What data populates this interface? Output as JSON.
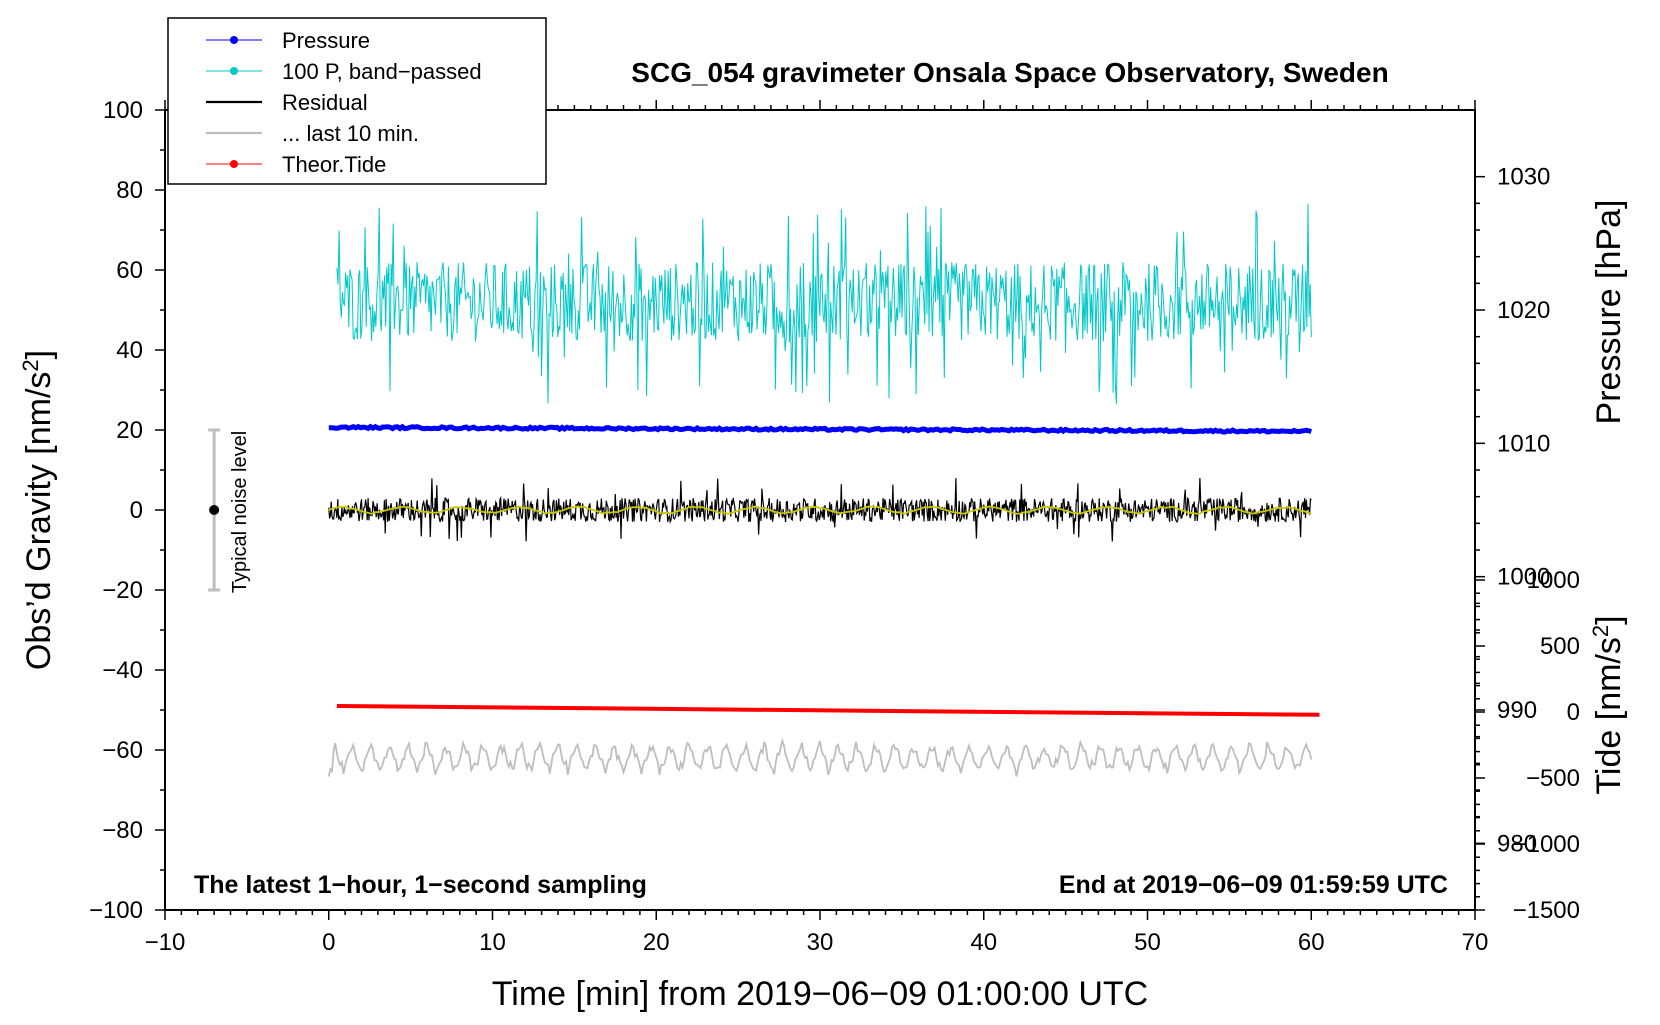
{
  "chart_data": {
    "type": "line",
    "title": "SCG_054 gravimeter Onsala Space Observatory, Sweden",
    "xlabel": "Time [min] from 2019−06−09 01:00:00 UTC",
    "ylabel_left": "Obs’d Gravity [nm/s",
    "ylabel_left_sup": "2",
    "ylabel_left_end": "]",
    "ylabel_pressure": "Pressure [hPa]",
    "ylabel_tide": "Tide [nm/s",
    "ylabel_tide_sup": "2",
    "ylabel_tide_end": "]",
    "xlim": [
      -10,
      70
    ],
    "ylim": [
      -100,
      100
    ],
    "x_ticks": [
      -10,
      0,
      10,
      20,
      30,
      40,
      50,
      60,
      70
    ],
    "x_tick_labels": [
      "−10",
      "0",
      "10",
      "20",
      "30",
      "40",
      "50",
      "60",
      "70"
    ],
    "y_ticks": [
      100,
      80,
      60,
      40,
      20,
      0,
      -20,
      -40,
      -60,
      -80,
      -100
    ],
    "y_tick_labels": [
      "100",
      "80",
      "60",
      "40",
      "20",
      "0",
      "−20",
      "−40",
      "−60",
      "−80",
      "−100"
    ],
    "pressure_axis": {
      "range": [
        975,
        1035
      ],
      "ticks": [
        1030,
        1020,
        1010,
        1000,
        990,
        980
      ],
      "tick_labels": [
        "1030",
        "1020",
        "1010",
        "1000",
        "990",
        "980"
      ]
    },
    "tide_axis": {
      "range": [
        -1500,
        1000
      ],
      "ticks": [
        1000,
        500,
        0,
        -500,
        -1000,
        -1500
      ],
      "tick_labels": [
        "1000",
        "500",
        "0",
        "−500",
        "−1000",
        "−1500"
      ]
    },
    "legend": {
      "position": "top-left",
      "entries": [
        {
          "label": "Pressure",
          "color": "#0000ff",
          "marker": true
        },
        {
          "label": "100 P, band−passed",
          "color": "#00c8c8",
          "marker": true
        },
        {
          "label": "Residual",
          "color": "#000000",
          "marker": false
        },
        {
          "label": "... last 10 min.",
          "color": "#bebebe",
          "marker": false
        },
        {
          "label": "Theor.Tide",
          "color": "#ff0000",
          "marker": true
        }
      ]
    },
    "annotations": {
      "noise_label": "Typical noise level",
      "noise_range": [
        -20,
        20
      ],
      "bottom_left": "The latest 1−hour, 1−second sampling",
      "bottom_right": "End at 2019−06−09 01:59:59 UTC"
    },
    "series": [
      {
        "name": "Pressure",
        "axis": "pressure",
        "x": [
          0,
          60
        ],
        "values": [
          1011.2,
          1010.9
        ],
        "color": "#0000ff"
      },
      {
        "name": "100 P, band−passed",
        "axis": "gravity",
        "x_range": [
          0.5,
          60
        ],
        "center": 52,
        "amplitude": 10,
        "color": "#00c8c8"
      },
      {
        "name": "Residual",
        "axis": "gravity",
        "x_range": [
          0,
          60
        ],
        "center": 0,
        "amplitude": 3,
        "color": "#000000"
      },
      {
        "name": "Residual smoothed",
        "axis": "gravity",
        "x_range": [
          0,
          60
        ],
        "center": 0,
        "amplitude": 1,
        "color": "#c8c800"
      },
      {
        "name": "Theor.Tide",
        "axis": "gravity",
        "x": [
          0.5,
          60.5
        ],
        "values": [
          -49,
          -51.2
        ],
        "color": "#ff0000"
      },
      {
        "name": "... last 10 min.",
        "axis": "gravity",
        "x_range": [
          0,
          60
        ],
        "center": -62,
        "amplitude": 3,
        "color": "#bebebe"
      }
    ]
  }
}
